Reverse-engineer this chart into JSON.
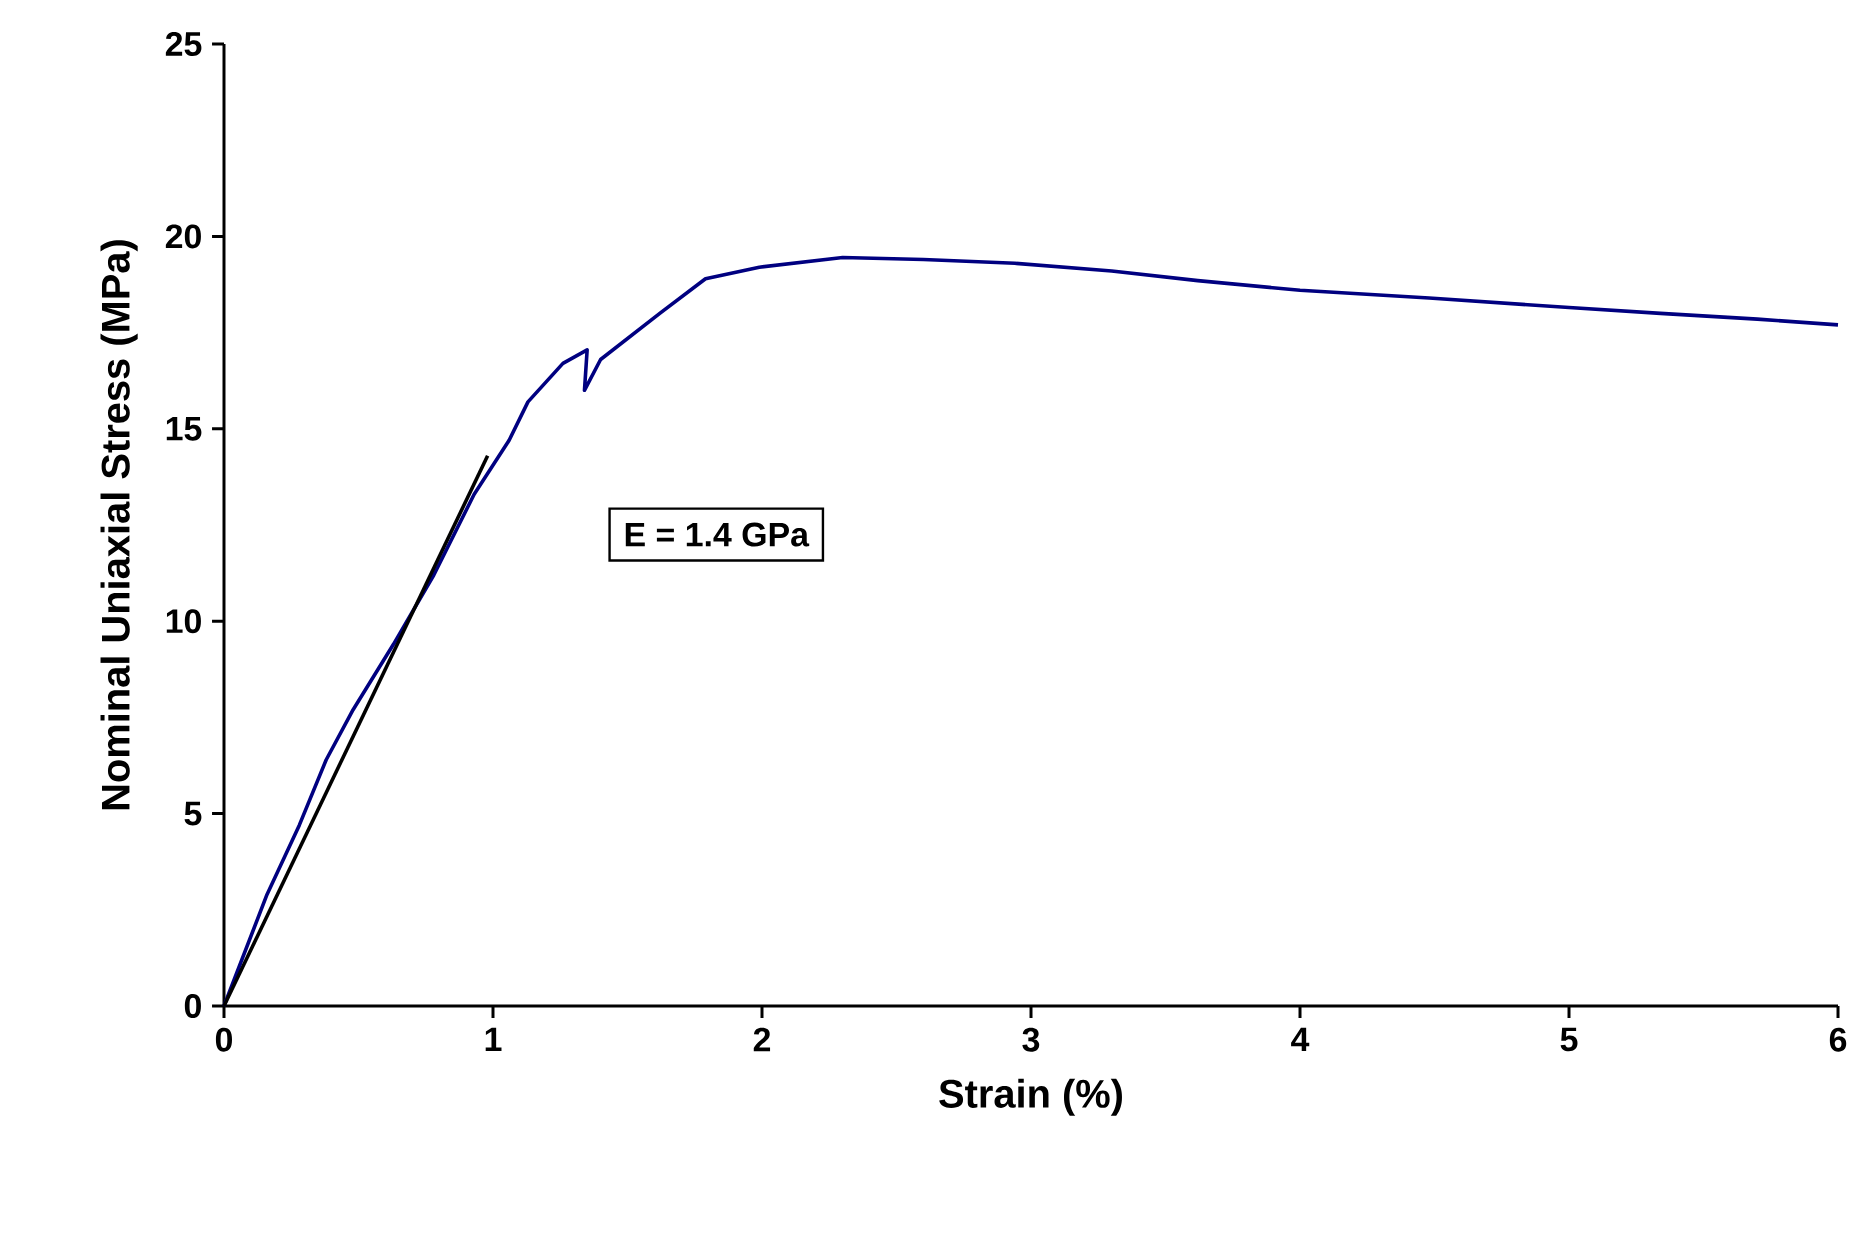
{
  "chart_data": {
    "type": "line",
    "xlabel": "Strain (%)",
    "ylabel": "Nominal Uniaxial Stress (MPa)",
    "xlim": [
      0,
      6
    ],
    "ylim": [
      0,
      25
    ],
    "xticks": [
      0,
      1,
      2,
      3,
      4,
      5,
      6
    ],
    "yticks": [
      0,
      5,
      10,
      15,
      20,
      25
    ],
    "marker": "none",
    "series": [
      {
        "color": "#000080",
        "x": [
          0,
          0.16,
          0.28,
          0.38,
          0.48,
          0.63,
          0.78,
          0.93,
          1.06,
          1.13,
          1.26,
          1.35,
          1.34,
          1.4,
          1.62,
          1.79,
          1.99,
          2.3,
          2.6,
          2.94,
          3.3,
          3.62,
          4.0,
          4.48,
          5.0,
          5.34,
          5.7,
          6.0
        ],
        "values": [
          0,
          2.9,
          4.7,
          6.4,
          7.7,
          9.4,
          11.2,
          13.3,
          14.7,
          15.7,
          16.7,
          17.05,
          16.0,
          16.8,
          18.0,
          18.9,
          19.2,
          19.45,
          19.4,
          19.3,
          19.1,
          18.85,
          18.6,
          18.4,
          18.15,
          18.0,
          17.85,
          17.7
        ]
      },
      {
        "color": "#000000",
        "x": [
          0,
          0.98
        ],
        "values": [
          0,
          14.3
        ]
      }
    ],
    "annotations": [
      "E = 1.4 GPa"
    ]
  }
}
